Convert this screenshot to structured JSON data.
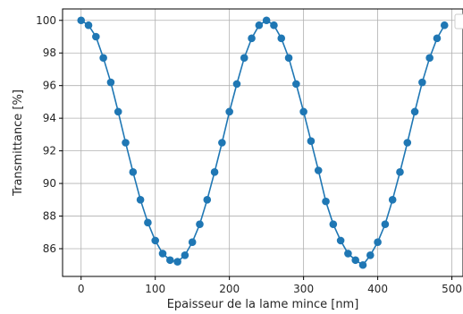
{
  "chart_data": {
    "type": "line",
    "title": "",
    "xlabel": "Epaisseur de la lame mince [nm]",
    "ylabel": "Transmittance [%]",
    "xlim": [
      -25,
      515
    ],
    "ylim": [
      84.3,
      100.7
    ],
    "xticks": [
      0,
      100,
      200,
      300,
      400,
      500
    ],
    "yticks": [
      86,
      88,
      90,
      92,
      94,
      96,
      98,
      100
    ],
    "grid": true,
    "legend": {
      "placement": "top-right",
      "entries": []
    },
    "series": [
      {
        "color": "#1f77b4",
        "markers": true,
        "x": [
          0,
          10,
          20,
          30,
          40,
          50,
          60,
          70,
          80,
          90,
          100,
          110,
          120,
          130,
          140,
          150,
          160,
          170,
          180,
          190,
          200,
          210,
          220,
          230,
          240,
          250,
          260,
          270,
          280,
          290,
          300,
          310,
          320,
          330,
          340,
          350,
          360,
          370,
          380,
          390,
          400,
          410,
          420,
          430,
          440,
          450,
          460,
          470,
          480,
          490
        ],
        "y": [
          100,
          99.7,
          99.0,
          97.7,
          96.2,
          94.4,
          92.5,
          90.7,
          89.0,
          87.6,
          86.5,
          85.7,
          85.3,
          85.2,
          85.6,
          86.4,
          87.5,
          89.0,
          90.7,
          92.5,
          94.4,
          96.1,
          97.7,
          98.9,
          99.7,
          100,
          99.7,
          98.9,
          97.7,
          96.1,
          94.4,
          92.6,
          90.8,
          88.9,
          87.5,
          86.5,
          85.7,
          85.3,
          85.0,
          85.6,
          86.4,
          87.5,
          89.0,
          90.7,
          92.5,
          94.4,
          96.2,
          97.7,
          98.9,
          99.7
        ]
      }
    ]
  }
}
